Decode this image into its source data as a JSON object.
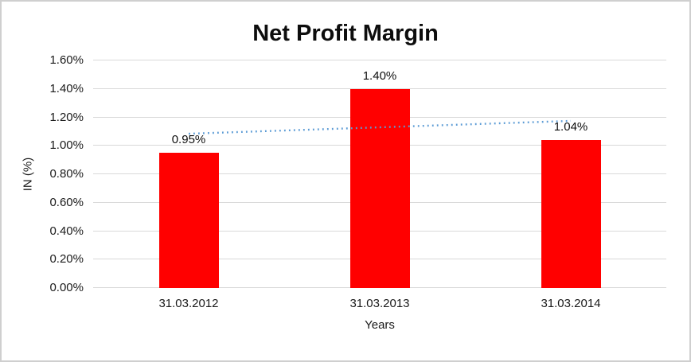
{
  "window": {
    "background": "#FFFFFF",
    "border_color": "#CFCFCF"
  },
  "chart_data": {
    "type": "bar",
    "title": "Net Profit Margin",
    "xlabel": "Years",
    "ylabel": "IN (%)",
    "categories": [
      "31.03.2012",
      "31.03.2013",
      "31.03.2014"
    ],
    "values": [
      0.95,
      1.4,
      1.04
    ],
    "value_labels": [
      "0.95%",
      "1.40%",
      "1.04%"
    ],
    "ylim": [
      0,
      1.6
    ],
    "ytick_values": [
      0,
      0.2,
      0.4,
      0.6,
      0.8,
      1.0,
      1.2,
      1.4,
      1.6
    ],
    "ytick_labels": [
      "0.00%",
      "0.20%",
      "0.40%",
      "0.60%",
      "0.80%",
      "1.00%",
      "1.20%",
      "1.40%",
      "1.60%"
    ],
    "grid": true,
    "legend": "none",
    "bar_color": "#FF0000",
    "gridline_color": "#D9D9D9",
    "trendline": {
      "type": "linear",
      "style": "dotted",
      "color": "#5B9BD5",
      "start_value": 1.085,
      "end_value": 1.175
    }
  }
}
